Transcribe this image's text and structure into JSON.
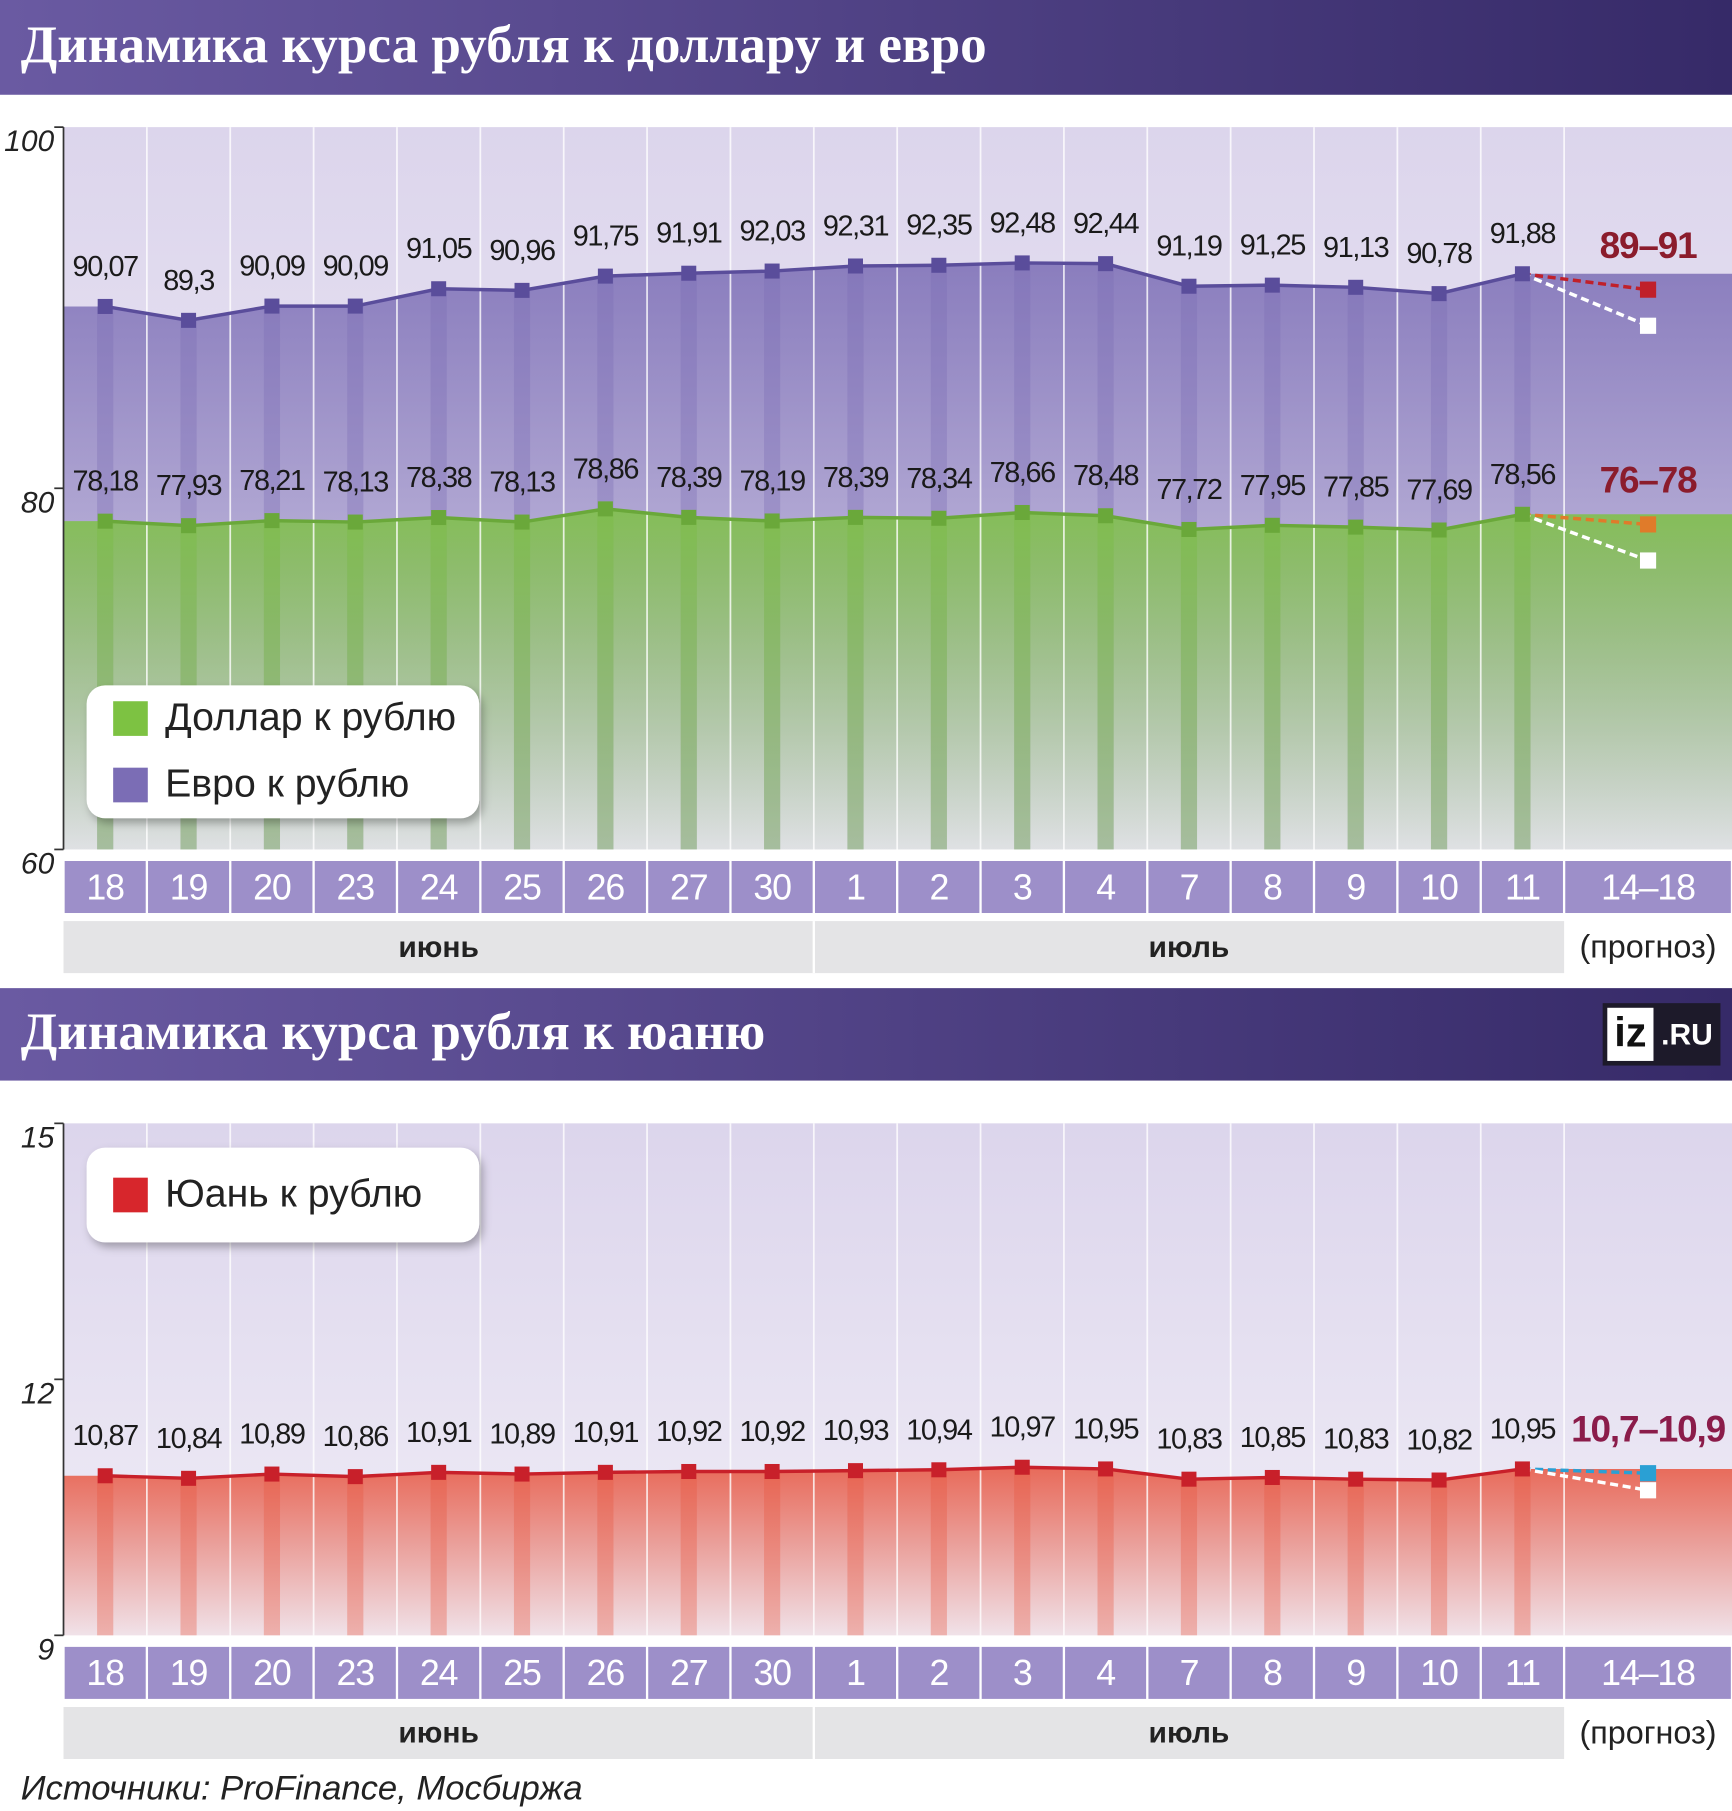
{
  "chart_data": [
    {
      "type": "line",
      "title": "Динамика курса рубля к доллару и евро",
      "categories": [
        "18",
        "19",
        "20",
        "23",
        "24",
        "25",
        "26",
        "27",
        "30",
        "1",
        "2",
        "3",
        "4",
        "7",
        "8",
        "9",
        "10",
        "11",
        "14–18"
      ],
      "months": [
        "июнь",
        "июль"
      ],
      "forecast_note": "(прогноз)",
      "ylim": [
        60,
        100
      ],
      "yticks": [
        60,
        80,
        100
      ],
      "grid": false,
      "series": [
        {
          "name": "Доллар к рублю",
          "color": "#7dc242",
          "line_color": "#6aa83a",
          "values": [
            78.18,
            77.93,
            78.21,
            78.13,
            78.38,
            78.13,
            78.86,
            78.39,
            78.19,
            78.39,
            78.34,
            78.66,
            78.48,
            77.72,
            77.95,
            77.85,
            77.69,
            78.56,
            null
          ],
          "value_labels": [
            "78,18",
            "77,93",
            "78,21",
            "78,13",
            "78,38",
            "78,13",
            "78,86",
            "78,39",
            "78,19",
            "78,39",
            "78,34",
            "78,66",
            "78,48",
            "77,72",
            "77,95",
            "77,85",
            "77,69",
            "78,56",
            null
          ],
          "forecast": {
            "label": "76–78",
            "values": [
              78,
              76
            ],
            "color": "#e07b2a",
            "label_color": "#8b1c2c"
          }
        },
        {
          "name": "Евро к рублю",
          "color": "#7b6db5",
          "line_color": "#5a4d9b",
          "values": [
            90.07,
            89.3,
            90.09,
            90.09,
            91.05,
            90.96,
            91.75,
            91.91,
            92.03,
            92.31,
            92.35,
            92.48,
            92.44,
            91.19,
            91.25,
            91.13,
            90.78,
            91.88,
            null
          ],
          "value_labels": [
            "90,07",
            "89,3",
            "90,09",
            "90,09",
            "91,05",
            "90,96",
            "91,75",
            "91,91",
            "92,03",
            "92,31",
            "92,35",
            "92,48",
            "92,44",
            "91,19",
            "91,25",
            "91,13",
            "90,78",
            "91,88",
            null
          ],
          "forecast": {
            "label": "89–91",
            "values": [
              91,
              89
            ],
            "color": "#c0202a",
            "label_color": "#8b1c2c"
          }
        }
      ]
    },
    {
      "type": "line",
      "title": "Динамика курса рубля к юаню",
      "logo": [
        "iz",
        ".RU"
      ],
      "categories": [
        "18",
        "19",
        "20",
        "23",
        "24",
        "25",
        "26",
        "27",
        "30",
        "1",
        "2",
        "3",
        "4",
        "7",
        "8",
        "9",
        "10",
        "11",
        "14–18"
      ],
      "months": [
        "июнь",
        "июль"
      ],
      "forecast_note": "(прогноз)",
      "ylim": [
        9,
        15
      ],
      "yticks": [
        9,
        12,
        15
      ],
      "grid": false,
      "series": [
        {
          "name": "Юань к рублю",
          "color": "#e8553f",
          "line_color": "#c8202a",
          "values": [
            10.87,
            10.84,
            10.89,
            10.86,
            10.91,
            10.89,
            10.91,
            10.92,
            10.92,
            10.93,
            10.94,
            10.97,
            10.95,
            10.83,
            10.85,
            10.83,
            10.82,
            10.95,
            null
          ],
          "value_labels": [
            "10,87",
            "10,84",
            "10,89",
            "10,86",
            "10,91",
            "10,89",
            "10,91",
            "10,92",
            "10,92",
            "10,93",
            "10,94",
            "10,97",
            "10,95",
            "10,83",
            "10,85",
            "10,83",
            "10,82",
            "10,95",
            null
          ],
          "forecast": {
            "label": "10,7–10,9",
            "values": [
              10.9,
              10.7
            ],
            "color": "#2aa0d4",
            "label_color": "#8b1c4a"
          }
        }
      ]
    }
  ],
  "source": "Источники: ProFinance, Мосбиржа"
}
